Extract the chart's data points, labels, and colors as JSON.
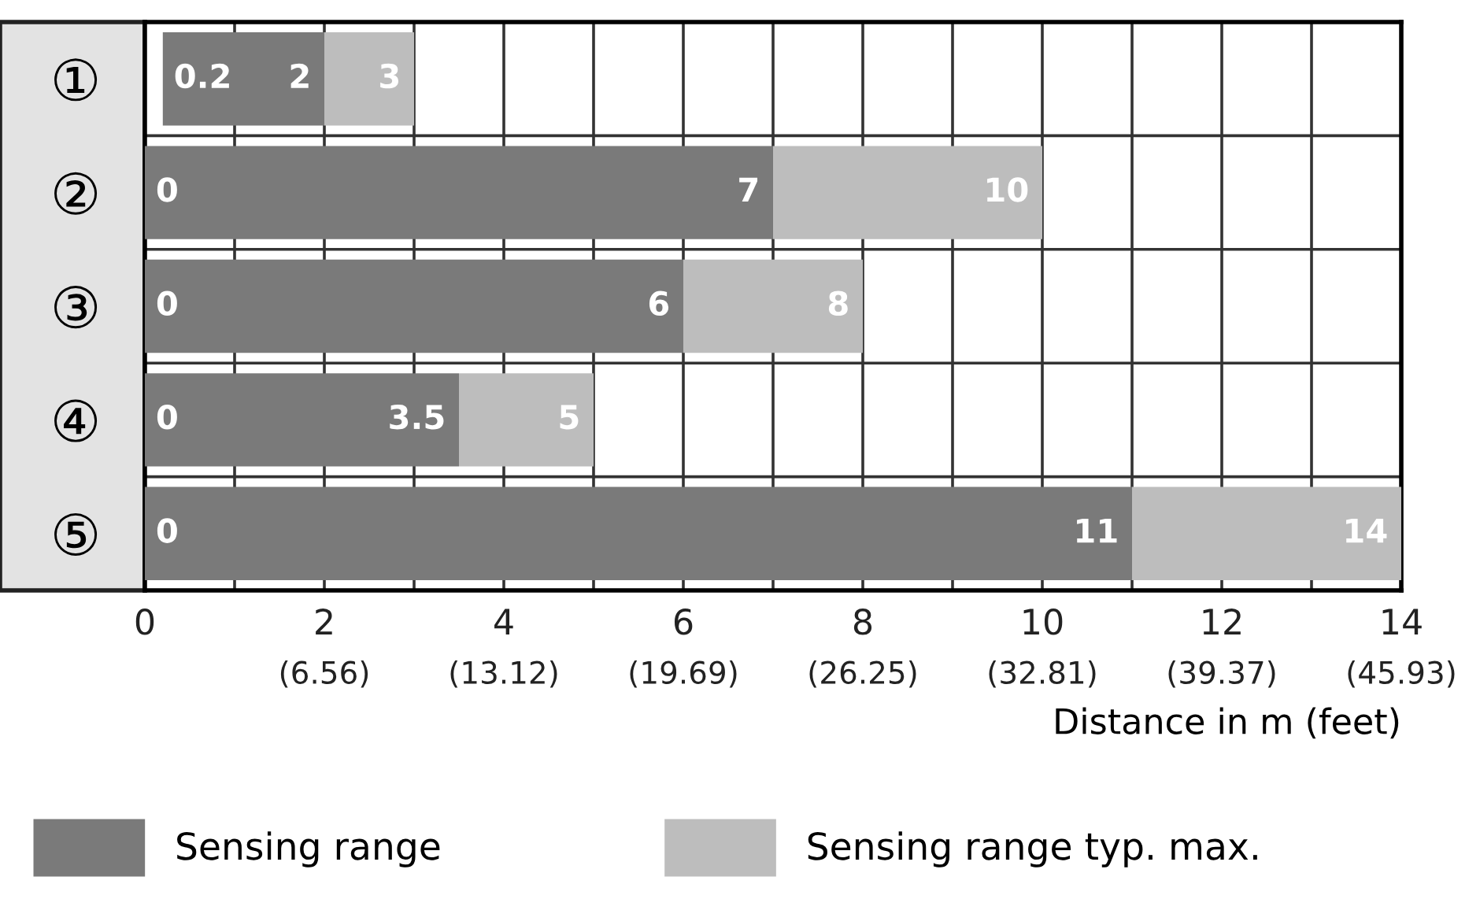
{
  "chart_data": {
    "type": "bar",
    "orientation": "horizontal",
    "categories": [
      "①",
      "②",
      "③",
      "④",
      "⑤"
    ],
    "series": [
      {
        "name": "Sensing range",
        "color": "#7a7a7a",
        "base": [
          0.2,
          0,
          0,
          0,
          0
        ],
        "values": [
          1.8,
          7,
          6,
          3.5,
          11
        ]
      },
      {
        "name": "Sensing range typ. max.",
        "color": "#bdbdbd",
        "base": [
          2,
          7,
          6,
          3.5,
          11
        ],
        "values": [
          1,
          3,
          2,
          1.5,
          3
        ]
      }
    ],
    "annotations": [
      "(6.56)",
      "(13.12)",
      "(19.69)",
      "(26.25)",
      "(32.81)",
      "(39.37)",
      "(45.93)",
      {
        "text": "0.2",
        "x": 0.2,
        "y": "①"
      },
      {
        "text": "2",
        "x": 2,
        "y": "①"
      },
      {
        "text": "3",
        "x": 3,
        "y": "①"
      },
      {
        "text": "0",
        "x": 0,
        "y": "②"
      },
      {
        "text": "7",
        "x": 7,
        "y": "②"
      },
      {
        "text": "10",
        "x": 10,
        "y": "②"
      },
      {
        "text": "0",
        "x": 0,
        "y": "③"
      },
      {
        "text": "6",
        "x": 6,
        "y": "③"
      },
      {
        "text": "8",
        "x": 8,
        "y": "③"
      },
      {
        "text": "0",
        "x": 0,
        "y": "④"
      },
      {
        "text": "3.5",
        "x": 3.5,
        "y": "④"
      },
      {
        "text": "5",
        "x": 5,
        "y": "④"
      },
      {
        "text": "0",
        "x": 0,
        "y": "⑤"
      },
      {
        "text": "11",
        "x": 11,
        "y": "⑤"
      },
      {
        "text": "14",
        "x": 14,
        "y": "⑤"
      }
    ],
    "xlabel": "Distance in m (feet)",
    "xlim": [
      0,
      14
    ],
    "xticks": [
      0,
      {
        "value": 1,
        "label": null
      },
      2,
      {
        "value": 3,
        "label": null
      },
      4,
      {
        "value": 5,
        "label": null
      },
      6,
      {
        "value": 7,
        "label": null
      },
      8,
      {
        "value": 9,
        "label": null
      },
      10,
      {
        "value": 11,
        "label": null
      },
      12,
      {
        "value": 13,
        "label": null
      },
      14
    ],
    "grid": true,
    "legend": "bottom"
  }
}
